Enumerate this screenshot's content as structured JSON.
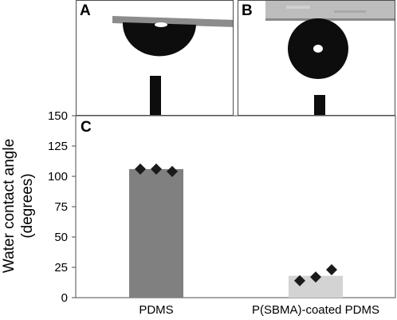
{
  "figure": {
    "panels": [
      {
        "letter": "A"
      },
      {
        "letter": "B"
      }
    ],
    "panel_c_letter": "C"
  },
  "colors": {
    "pdms_bar": "#808080",
    "coated_bar": "#d3d3d3",
    "marker": "#1a1a1a",
    "droplet": "#0d0d0d"
  },
  "chart_data": {
    "type": "bar",
    "categories": [
      "PDMS",
      "P(SBMA)-coated PDMS"
    ],
    "values": [
      106,
      18
    ],
    "points": [
      [
        106,
        106,
        104
      ],
      [
        14,
        17,
        23
      ]
    ],
    "ylabel_line1": "Water contact angle",
    "ylabel_line2": "(degrees)",
    "ylim": [
      0,
      150
    ],
    "yticks": [
      0,
      25,
      50,
      75,
      100,
      125,
      150
    ],
    "grid": false,
    "legend": "none"
  }
}
